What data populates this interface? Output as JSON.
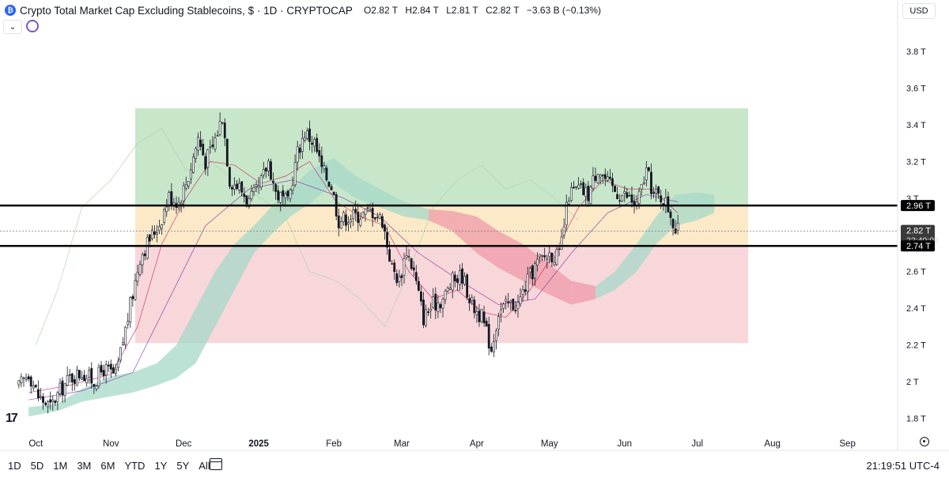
{
  "header": {
    "logo_text": "₿",
    "title": "Crypto Total Market Cap Excluding Stablecoins, $ · 1D · CRYPTOCAP",
    "open": "O2.82 T",
    "high": "H2.84 T",
    "low": "L2.81 T",
    "close": "C2.82 T",
    "change": "−3.63 B (−0.13%)"
  },
  "currency": "USD",
  "toolbar": {
    "timeframes": [
      "1D",
      "5D",
      "1M",
      "3M",
      "6M",
      "YTD",
      "1Y",
      "5Y",
      "All"
    ],
    "clock": "21:19:51 UTC-4"
  },
  "icons": {
    "collapse": "chevron-down-icon",
    "refresh": "refresh-icon",
    "calendar": "calendar-range-icon",
    "settings": "gear-icon",
    "logo": "tradingview-logo"
  },
  "colors": {
    "green_zone": "#c8e6c9",
    "yellow_zone": "#fbe9c8",
    "red_zone": "#f8d7da",
    "cloud_bull": "#a6d8c8",
    "cloud_bear": "#ef9aa8",
    "candle_up": "#131722",
    "candle_down": "#131722",
    "level_line": "#000000"
  },
  "chart_data": {
    "type": "candlestick",
    "y_unit": "T",
    "ylim": [
      1.72,
      3.96
    ],
    "y_ticks": [
      "1.8 T",
      "2 T",
      "2.2 T",
      "2.4 T",
      "2.6 T",
      "2.8 T",
      "3 T",
      "3.2 T",
      "3.4 T",
      "3.6 T",
      "3.8 T"
    ],
    "x_ticks": [
      "Oct",
      "Nov",
      "Dec",
      "2025",
      "Feb",
      "Mar",
      "Apr",
      "May",
      "Jun",
      "Jul",
      "Aug",
      "Sep"
    ],
    "price_labels": {
      "upper_level": "2.96 T",
      "last_price": "2.82 T",
      "countdown": "22:40:08",
      "lower_level": "2.74 T"
    },
    "levels": [
      2.96,
      2.74
    ],
    "last_price": 2.82,
    "zones": [
      {
        "name": "green",
        "from": 2.96,
        "to": 3.49
      },
      {
        "name": "yellow",
        "from": 2.74,
        "to": 2.96
      },
      {
        "name": "red",
        "from": 2.21,
        "to": 2.74
      }
    ],
    "close_path": [
      [
        "2024-09-24",
        1.97
      ],
      [
        "2024-09-28",
        2.05
      ],
      [
        "2024-10-02",
        1.92
      ],
      [
        "2024-10-07",
        1.86
      ],
      [
        "2024-10-11",
        1.95
      ],
      [
        "2024-10-15",
        2.02
      ],
      [
        "2024-10-20",
        2.05
      ],
      [
        "2024-10-25",
        2.0
      ],
      [
        "2024-10-29",
        2.07
      ],
      [
        "2024-11-03",
        2.03
      ],
      [
        "2024-11-06",
        2.22
      ],
      [
        "2024-11-10",
        2.48
      ],
      [
        "2024-11-13",
        2.68
      ],
      [
        "2024-11-17",
        2.78
      ],
      [
        "2024-11-21",
        2.86
      ],
      [
        "2024-11-25",
        3.01
      ],
      [
        "2024-11-29",
        2.98
      ],
      [
        "2024-12-03",
        3.12
      ],
      [
        "2024-12-07",
        3.33
      ],
      [
        "2024-12-10",
        3.2
      ],
      [
        "2024-12-13",
        3.28
      ],
      [
        "2024-12-17",
        3.45
      ],
      [
        "2024-12-20",
        3.1
      ],
      [
        "2024-12-24",
        3.06
      ],
      [
        "2024-12-28",
        2.98
      ],
      [
        "2025-01-01",
        3.05
      ],
      [
        "2025-01-05",
        3.2
      ],
      [
        "2025-01-08",
        3.03
      ],
      [
        "2025-01-13",
        2.97
      ],
      [
        "2025-01-17",
        3.25
      ],
      [
        "2025-01-20",
        3.36
      ],
      [
        "2025-01-24",
        3.3
      ],
      [
        "2025-01-27",
        3.16
      ],
      [
        "2025-01-31",
        3.07
      ],
      [
        "2025-02-03",
        2.88
      ],
      [
        "2025-02-07",
        2.9
      ],
      [
        "2025-02-12",
        2.91
      ],
      [
        "2025-02-17",
        2.93
      ],
      [
        "2025-02-21",
        2.88
      ],
      [
        "2025-02-25",
        2.62
      ],
      [
        "2025-02-28",
        2.55
      ],
      [
        "2025-03-03",
        2.72
      ],
      [
        "2025-03-06",
        2.6
      ],
      [
        "2025-03-10",
        2.35
      ],
      [
        "2025-03-14",
        2.42
      ],
      [
        "2025-03-18",
        2.45
      ],
      [
        "2025-03-22",
        2.55
      ],
      [
        "2025-03-26",
        2.58
      ],
      [
        "2025-03-30",
        2.42
      ],
      [
        "2025-04-03",
        2.35
      ],
      [
        "2025-04-07",
        2.18
      ],
      [
        "2025-04-10",
        2.38
      ],
      [
        "2025-04-14",
        2.42
      ],
      [
        "2025-04-18",
        2.42
      ],
      [
        "2025-04-22",
        2.55
      ],
      [
        "2025-04-26",
        2.65
      ],
      [
        "2025-05-01",
        2.7
      ],
      [
        "2025-05-05",
        2.68
      ],
      [
        "2025-05-09",
        3.02
      ],
      [
        "2025-05-13",
        3.05
      ],
      [
        "2025-05-17",
        3.02
      ],
      [
        "2025-05-21",
        3.17
      ],
      [
        "2025-05-25",
        3.08
      ],
      [
        "2025-05-29",
        3.03
      ],
      [
        "2025-06-02",
        3.01
      ],
      [
        "2025-06-06",
        2.96
      ],
      [
        "2025-06-10",
        3.15
      ],
      [
        "2025-06-13",
        3.02
      ],
      [
        "2025-06-17",
        3.0
      ],
      [
        "2025-06-20",
        2.92
      ],
      [
        "2025-06-22",
        2.82
      ],
      [
        "2025-06-23",
        2.82
      ]
    ],
    "ichimoku_cloud": [
      [
        "2024-09-28",
        1.81,
        1.86
      ],
      [
        "2024-10-10",
        1.84,
        1.88
      ],
      [
        "2024-10-20",
        1.89,
        1.96
      ],
      [
        "2024-11-01",
        1.92,
        2.03
      ],
      [
        "2024-11-10",
        1.94,
        2.05
      ],
      [
        "2024-11-20",
        1.98,
        2.1
      ],
      [
        "2024-11-28",
        2.02,
        2.2
      ],
      [
        "2024-12-06",
        2.1,
        2.4
      ],
      [
        "2024-12-14",
        2.3,
        2.6
      ],
      [
        "2024-12-22",
        2.5,
        2.75
      ],
      [
        "2024-12-30",
        2.7,
        2.85
      ],
      [
        "2025-01-06",
        2.8,
        2.95
      ],
      [
        "2025-01-14",
        2.9,
        3.05
      ],
      [
        "2025-01-22",
        2.97,
        3.15
      ],
      [
        "2025-02-01",
        3.08,
        3.22
      ],
      [
        "2025-02-10",
        3.0,
        3.12
      ],
      [
        "2025-02-20",
        2.95,
        3.05
      ],
      [
        "2025-03-02",
        2.9,
        2.98
      ],
      [
        "2025-03-12",
        2.88,
        2.94
      ],
      [
        "2025-03-22",
        2.82,
        2.93
      ],
      [
        "2025-04-01",
        2.7,
        2.9
      ],
      [
        "2025-04-10",
        2.62,
        2.82
      ],
      [
        "2025-04-20",
        2.55,
        2.75
      ],
      [
        "2025-04-30",
        2.48,
        2.65
      ],
      [
        "2025-05-10",
        2.42,
        2.55
      ],
      [
        "2025-05-20",
        2.45,
        2.52
      ],
      [
        "2025-05-28",
        2.5,
        2.6
      ],
      [
        "2025-06-06",
        2.6,
        2.75
      ],
      [
        "2025-06-14",
        2.75,
        2.9
      ],
      [
        "2025-06-22",
        2.85,
        3.02
      ],
      [
        "2025-07-01",
        2.88,
        3.03
      ],
      [
        "2025-07-08",
        2.92,
        3.02
      ]
    ],
    "lagging_span": [
      [
        "2024-10-01",
        2.2
      ],
      [
        "2024-10-10",
        2.5
      ],
      [
        "2024-10-20",
        2.95
      ],
      [
        "2024-11-01",
        3.1
      ],
      [
        "2024-11-12",
        3.3
      ],
      [
        "2024-11-22",
        3.38
      ],
      [
        "2024-12-02",
        3.15
      ],
      [
        "2024-12-12",
        3.2
      ],
      [
        "2024-12-22",
        3.1
      ],
      [
        "2025-01-02",
        3.0
      ],
      [
        "2025-01-12",
        2.9
      ],
      [
        "2025-01-22",
        2.6
      ],
      [
        "2025-02-02",
        2.55
      ],
      [
        "2025-02-12",
        2.45
      ],
      [
        "2025-02-22",
        2.3
      ],
      [
        "2025-03-04",
        2.6
      ],
      [
        "2025-03-14",
        2.95
      ],
      [
        "2025-03-24",
        3.1
      ],
      [
        "2025-04-03",
        3.18
      ],
      [
        "2025-04-13",
        3.05
      ],
      [
        "2025-04-23",
        3.1
      ],
      [
        "2025-05-03",
        3.0
      ],
      [
        "2025-05-13",
        2.88
      ]
    ],
    "conversion_line": [
      [
        "2024-09-28",
        1.94
      ],
      [
        "2024-10-15",
        1.98
      ],
      [
        "2024-11-01",
        2.04
      ],
      [
        "2024-11-12",
        2.3
      ],
      [
        "2024-11-22",
        2.75
      ],
      [
        "2024-12-02",
        3.0
      ],
      [
        "2024-12-12",
        3.2
      ],
      [
        "2024-12-22",
        3.18
      ],
      [
        "2025-01-02",
        3.08
      ],
      [
        "2025-01-12",
        3.12
      ],
      [
        "2025-01-22",
        3.2
      ],
      [
        "2025-02-02",
        2.98
      ],
      [
        "2025-02-12",
        2.9
      ],
      [
        "2025-02-22",
        2.85
      ],
      [
        "2025-03-04",
        2.6
      ],
      [
        "2025-03-14",
        2.45
      ],
      [
        "2025-03-24",
        2.5
      ],
      [
        "2025-04-03",
        2.38
      ],
      [
        "2025-04-13",
        2.35
      ],
      [
        "2025-04-23",
        2.5
      ],
      [
        "2025-05-03",
        2.7
      ],
      [
        "2025-05-13",
        2.95
      ],
      [
        "2025-05-23",
        3.1
      ],
      [
        "2025-06-02",
        3.05
      ],
      [
        "2025-06-12",
        3.05
      ],
      [
        "2025-06-23",
        2.92
      ]
    ],
    "base_line": [
      [
        "2024-09-28",
        1.9
      ],
      [
        "2024-10-20",
        1.95
      ],
      [
        "2024-11-10",
        2.05
      ],
      [
        "2024-11-25",
        2.45
      ],
      [
        "2024-12-10",
        2.85
      ],
      [
        "2024-12-28",
        3.05
      ],
      [
        "2025-01-15",
        3.1
      ],
      [
        "2025-02-05",
        3.0
      ],
      [
        "2025-02-20",
        2.9
      ],
      [
        "2025-03-08",
        2.7
      ],
      [
        "2025-03-25",
        2.55
      ],
      [
        "2025-04-10",
        2.42
      ],
      [
        "2025-04-25",
        2.45
      ],
      [
        "2025-05-10",
        2.7
      ],
      [
        "2025-05-25",
        2.92
      ],
      [
        "2025-06-10",
        3.02
      ],
      [
        "2025-06-23",
        2.98
      ]
    ]
  }
}
